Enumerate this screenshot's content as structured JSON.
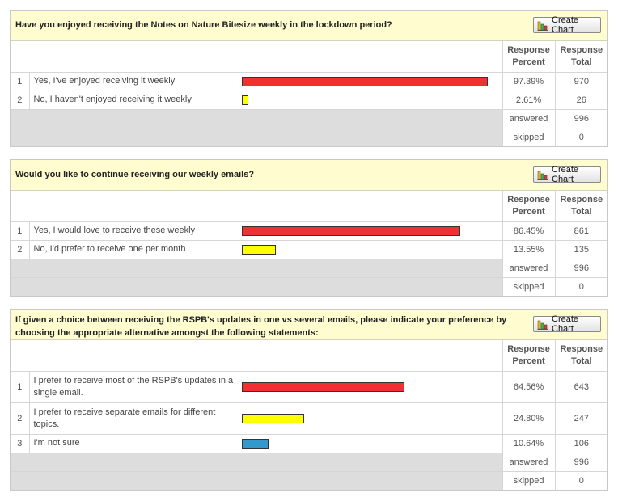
{
  "create_chart_label": "Create Chart",
  "headers": {
    "percent_line1": "Response",
    "percent_line2": "Percent",
    "total_line1": "Response",
    "total_line2": "Total"
  },
  "summary_labels": {
    "answered": "answered",
    "skipped": "skipped"
  },
  "colors": {
    "red": "#f03131",
    "yellow": "#ffff00",
    "blue": "#3399cc"
  },
  "questions": [
    {
      "title": "Have you enjoyed receiving the Notes on Nature Bitesize weekly in the lockdown period?",
      "answers": [
        {
          "num": "1",
          "label": "Yes, I've enjoyed receiving it weekly",
          "percent": "97.39%",
          "total": "970",
          "value": 97.39,
          "color": "red"
        },
        {
          "num": "2",
          "label": "No, I haven't enjoyed receiving it weekly",
          "percent": "2.61%",
          "total": "26",
          "value": 2.61,
          "color": "yellow"
        }
      ],
      "answered": "996",
      "skipped": "0"
    },
    {
      "title": "Would you like to continue receiving our weekly emails?",
      "answers": [
        {
          "num": "1",
          "label": "Yes, I would love to receive these weekly",
          "percent": "86.45%",
          "total": "861",
          "value": 86.45,
          "color": "red"
        },
        {
          "num": "2",
          "label": "No, I'd prefer to receive one per month",
          "percent": "13.55%",
          "total": "135",
          "value": 13.55,
          "color": "yellow"
        }
      ],
      "answered": "996",
      "skipped": "0"
    },
    {
      "title": "If given a choice between receiving the RSPB's updates in one vs several emails, please indicate your preference by choosing the appropriate alternative amongst the following statements:",
      "answers": [
        {
          "num": "1",
          "label": "I prefer to receive most of the RSPB's updates in a single email.",
          "percent": "64.56%",
          "total": "643",
          "value": 64.56,
          "color": "red"
        },
        {
          "num": "2",
          "label": "I prefer to receive separate emails for different topics.",
          "percent": "24.80%",
          "total": "247",
          "value": 24.8,
          "color": "yellow"
        },
        {
          "num": "3",
          "label": "I'm not sure",
          "percent": "10.64%",
          "total": "106",
          "value": 10.64,
          "color": "blue"
        }
      ],
      "answered": "996",
      "skipped": "0"
    }
  ]
}
